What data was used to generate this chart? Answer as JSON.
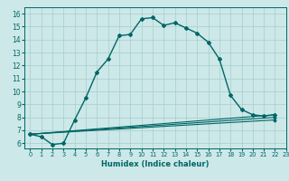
{
  "xlabel": "Humidex (Indice chaleur)",
  "bg_color": "#cce8e8",
  "grid_color": "#aacccc",
  "line_color": "#006666",
  "xlim": [
    -0.5,
    23
  ],
  "ylim": [
    5.6,
    16.5
  ],
  "xticks": [
    0,
    1,
    2,
    3,
    4,
    5,
    6,
    7,
    8,
    9,
    10,
    11,
    12,
    13,
    14,
    15,
    16,
    17,
    18,
    19,
    20,
    21,
    22,
    23
  ],
  "yticks": [
    6,
    7,
    8,
    9,
    10,
    11,
    12,
    13,
    14,
    15,
    16
  ],
  "main_curve": {
    "x": [
      0,
      1,
      2,
      3,
      4,
      5,
      6,
      7,
      8,
      9,
      10,
      11,
      12,
      13,
      14,
      15,
      16,
      17,
      18,
      19,
      20,
      21,
      22
    ],
    "y": [
      6.7,
      6.5,
      5.9,
      6.0,
      7.8,
      9.5,
      11.5,
      12.5,
      14.3,
      14.4,
      15.6,
      15.7,
      15.1,
      15.3,
      14.9,
      14.5,
      13.8,
      12.5,
      9.7,
      8.6,
      8.2,
      8.1,
      8.2
    ]
  },
  "flat_curves": [
    {
      "x": [
        0,
        22
      ],
      "y": [
        6.7,
        7.8
      ]
    },
    {
      "x": [
        0,
        22
      ],
      "y": [
        6.7,
        8.0
      ]
    },
    {
      "x": [
        0,
        22
      ],
      "y": [
        6.7,
        8.2
      ]
    }
  ],
  "xlabel_fontsize": 6,
  "tick_fontsize_x": 4.8,
  "tick_fontsize_y": 5.5
}
